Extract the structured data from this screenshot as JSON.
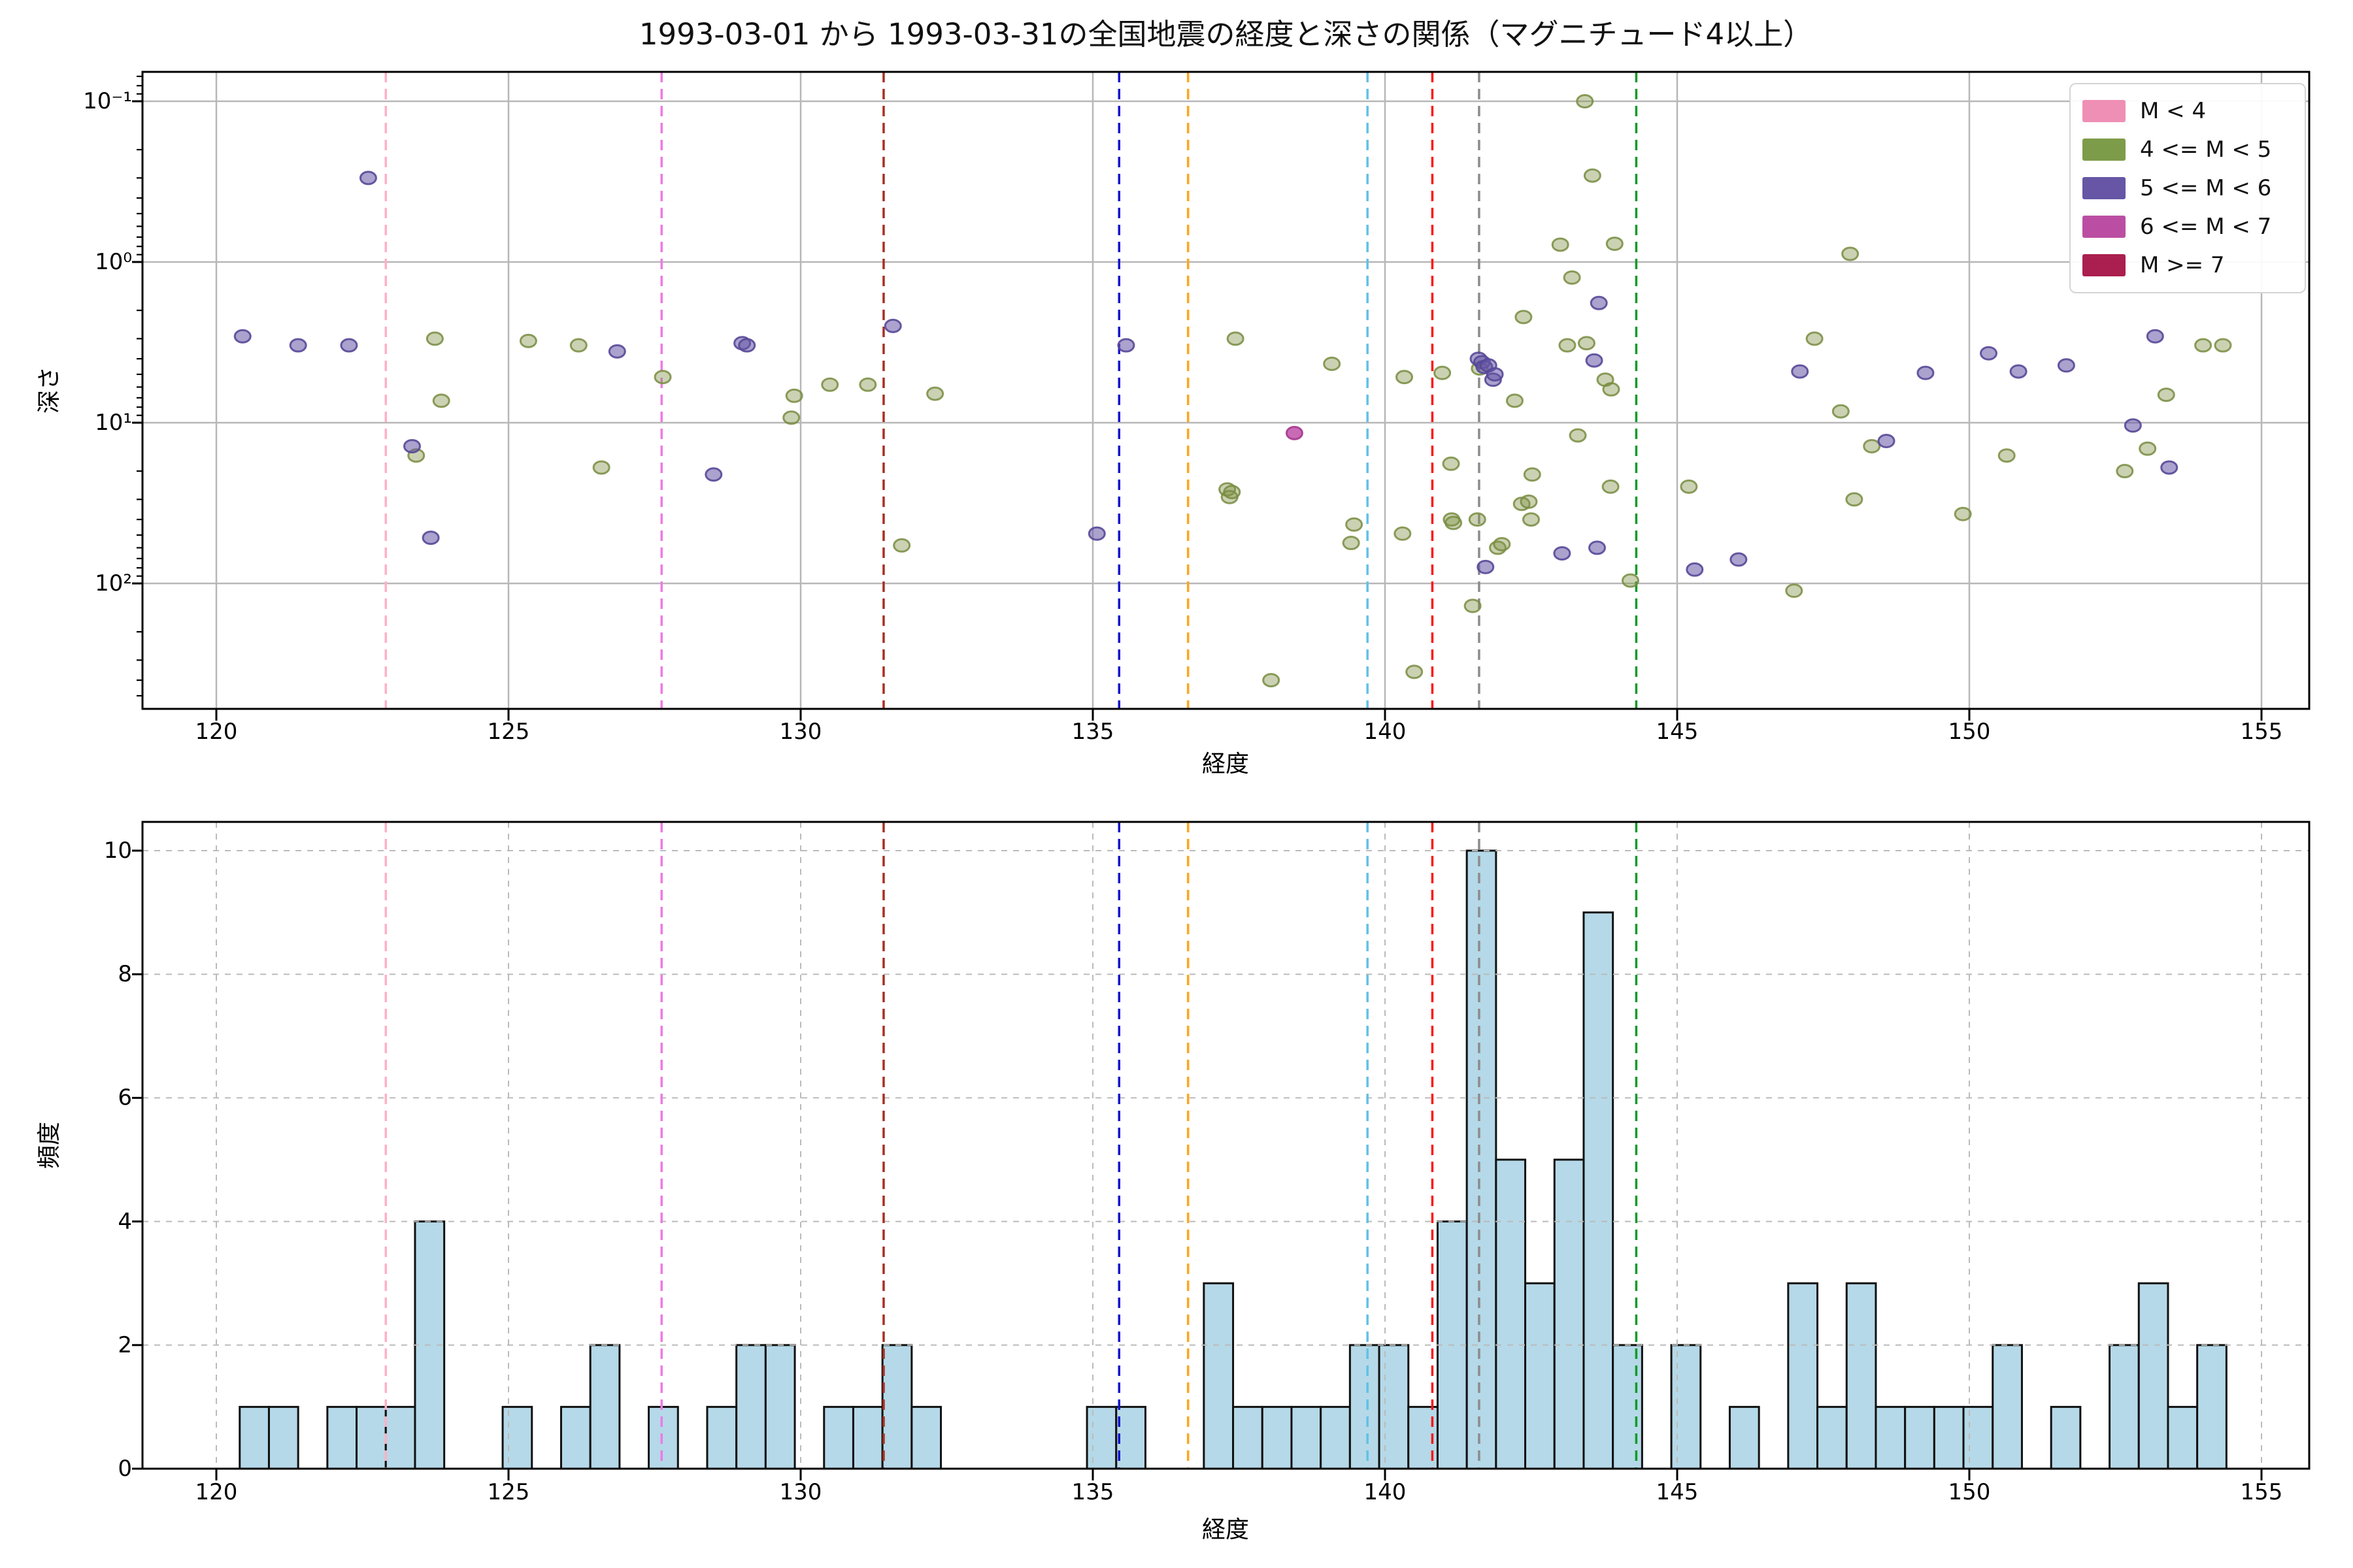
{
  "title": "1993-03-01 から 1993-03-31の全国地震の経度と深さの関係（マグニチュード4以上）",
  "chart_data": [
    {
      "type": "scatter",
      "title": "1993-03-01 から 1993-03-31の全国地震の経度と深さの関係（マグニチュード4以上）",
      "xlabel": "経度",
      "ylabel": "深さ",
      "xlim": [
        117.35,
        155.85
      ],
      "y_axis": "log10 depth, inverted (shallow at top)",
      "depth_range_top_to_bottom": [
        0.066,
        610
      ],
      "x_ticks": [
        120,
        125,
        130,
        135,
        140,
        145,
        150,
        155
      ],
      "y_ticks": [
        {
          "depth": 0.1,
          "label": "10⁻¹"
        },
        {
          "depth": 1,
          "label": "10⁰"
        },
        {
          "depth": 10,
          "label": "10¹"
        },
        {
          "depth": 100,
          "label": "10²"
        }
      ],
      "grid": "solid gray",
      "legend_position": "upper right",
      "legend": [
        {
          "label": "M < 4",
          "color": "#ef8fb5"
        },
        {
          "label": "4 <= M < 5",
          "color": "#7d9c49"
        },
        {
          "label": "5 <= M < 6",
          "color": "#6656a5"
        },
        {
          "label": "6 <= M < 7",
          "color": "#bb4ea2"
        },
        {
          "label": "M >= 7",
          "color": "#aa1f4f"
        }
      ],
      "series": [
        {
          "name": "4 <= M < 5",
          "fill": "rgba(130,148,75,0.42)",
          "edge": "rgba(120,140,65,0.85)",
          "points": [
            [
              123.42,
              16
            ],
            [
              123.74,
              3.0
            ],
            [
              123.85,
              7.3
            ],
            [
              125.34,
              3.1
            ],
            [
              126.2,
              3.3
            ],
            [
              126.59,
              19
            ],
            [
              127.64,
              5.2
            ],
            [
              129.84,
              9.3
            ],
            [
              129.89,
              6.8
            ],
            [
              130.5,
              5.8
            ],
            [
              131.15,
              5.8
            ],
            [
              131.73,
              58
            ],
            [
              132.3,
              6.6
            ],
            [
              137.3,
              26
            ],
            [
              137.34,
              29
            ],
            [
              137.38,
              27
            ],
            [
              137.44,
              3.0
            ],
            [
              138.05,
              400
            ],
            [
              139.09,
              4.3
            ],
            [
              139.42,
              56
            ],
            [
              139.47,
              43
            ],
            [
              140.3,
              49
            ],
            [
              140.33,
              5.2
            ],
            [
              140.5,
              355
            ],
            [
              140.98,
              4.9
            ],
            [
              141.13,
              18
            ],
            [
              141.14,
              40
            ],
            [
              141.17,
              42
            ],
            [
              141.5,
              138
            ],
            [
              141.58,
              40
            ],
            [
              141.62,
              4.6
            ],
            [
              141.93,
              60
            ],
            [
              142.0,
              57
            ],
            [
              142.22,
              7.3
            ],
            [
              142.34,
              32
            ],
            [
              142.37,
              2.2
            ],
            [
              142.46,
              31
            ],
            [
              142.5,
              40
            ],
            [
              142.52,
              21
            ],
            [
              143.0,
              0.78
            ],
            [
              143.12,
              3.3
            ],
            [
              143.2,
              1.25
            ],
            [
              143.3,
              12
            ],
            [
              143.42,
              0.1
            ],
            [
              143.45,
              3.2
            ],
            [
              143.55,
              0.29
            ],
            [
              143.77,
              5.4
            ],
            [
              143.86,
              25
            ],
            [
              143.87,
              6.2
            ],
            [
              143.93,
              0.77
            ],
            [
              144.2,
              96
            ],
            [
              145.2,
              25
            ],
            [
              147.0,
              111
            ],
            [
              147.35,
              3.0
            ],
            [
              147.8,
              8.5
            ],
            [
              147.96,
              0.89
            ],
            [
              148.03,
              30
            ],
            [
              148.33,
              14
            ],
            [
              149.89,
              37
            ],
            [
              150.64,
              16
            ],
            [
              152.66,
              20
            ],
            [
              153.05,
              14.5
            ],
            [
              153.37,
              6.7
            ],
            [
              154.0,
              3.3
            ],
            [
              154.34,
              3.3
            ]
          ]
        },
        {
          "name": "5 <= M < 6",
          "fill": "rgba(102,86,165,0.55)",
          "edge": "rgba(88,72,152,0.9)",
          "points": [
            [
              120.45,
              2.9
            ],
            [
              121.4,
              3.3
            ],
            [
              122.27,
              3.3
            ],
            [
              122.6,
              0.3
            ],
            [
              123.35,
              14
            ],
            [
              123.67,
              52
            ],
            [
              126.86,
              3.6
            ],
            [
              128.51,
              21
            ],
            [
              129.0,
              3.2
            ],
            [
              129.08,
              3.3
            ],
            [
              131.58,
              2.5
            ],
            [
              135.07,
              49
            ],
            [
              135.57,
              3.3
            ],
            [
              141.6,
              4.0
            ],
            [
              141.66,
              4.2
            ],
            [
              141.7,
              4.5
            ],
            [
              141.77,
              4.4
            ],
            [
              141.85,
              5.4
            ],
            [
              141.88,
              5.0
            ],
            [
              141.72,
              79
            ],
            [
              143.03,
              65
            ],
            [
              143.58,
              4.1
            ],
            [
              143.63,
              60
            ],
            [
              143.66,
              1.8
            ],
            [
              145.3,
              82
            ],
            [
              146.05,
              71
            ],
            [
              147.1,
              4.8
            ],
            [
              148.58,
              13
            ],
            [
              149.25,
              4.9
            ],
            [
              150.33,
              3.7
            ],
            [
              150.84,
              4.8
            ],
            [
              151.66,
              4.4
            ],
            [
              152.8,
              10.4
            ],
            [
              153.18,
              2.9
            ],
            [
              153.42,
              19
            ]
          ]
        },
        {
          "name": "6 <= M < 7",
          "fill": "rgba(192,80,168,0.85)",
          "edge": "rgba(170,61,146,0.95)",
          "points": [
            [
              138.45,
              11.6
            ]
          ]
        },
        {
          "name": "M < 4",
          "fill": "rgba(239,143,181,0.6)",
          "edge": "rgba(230,120,165,0.9)",
          "points": []
        },
        {
          "name": "M >= 7",
          "fill": "rgba(170,31,79,0.8)",
          "edge": "rgba(150,20,65,0.95)",
          "points": []
        }
      ]
    },
    {
      "type": "histogram",
      "xlabel": "経度",
      "ylabel": "頻度",
      "bin_start": 120.4,
      "bin_width": 0.5,
      "counts": [
        1,
        1,
        0,
        1,
        1,
        1,
        4,
        0,
        0,
        1,
        0,
        1,
        2,
        0,
        1,
        0,
        1,
        2,
        2,
        0,
        1,
        1,
        2,
        1,
        0,
        0,
        0,
        0,
        0,
        1,
        1,
        0,
        0,
        3,
        1,
        1,
        1,
        1,
        2,
        2,
        1,
        4,
        10,
        5,
        3,
        5,
        9,
        2,
        0,
        2,
        0,
        1,
        0,
        3,
        1,
        3,
        1,
        1,
        1,
        1,
        2,
        0,
        1,
        0,
        2,
        3,
        1,
        2
      ],
      "x_ticks": [
        120,
        125,
        130,
        135,
        140,
        145,
        150,
        155
      ],
      "y_ticks": [
        0,
        2,
        4,
        6,
        8,
        10
      ],
      "ylim": [
        0,
        10.5
      ],
      "bar_fill": "#b5d9e8",
      "bar_edge": "#111111",
      "grid": "dashed gray"
    }
  ],
  "reference_lines": [
    {
      "lon": 122.9,
      "color": "#ffb0c4"
    },
    {
      "lon": 127.62,
      "color": "#ee7ae5"
    },
    {
      "lon": 131.42,
      "color": "#aa2e22"
    },
    {
      "lon": 135.45,
      "color": "#1414cc"
    },
    {
      "lon": 136.63,
      "color": "#ffa51e"
    },
    {
      "lon": 139.7,
      "color": "#62c1e5"
    },
    {
      "lon": 140.81,
      "color": "#ff1414"
    },
    {
      "lon": 141.61,
      "color": "#8c8c8c"
    },
    {
      "lon": 144.3,
      "color": "#0f9b28"
    }
  ]
}
